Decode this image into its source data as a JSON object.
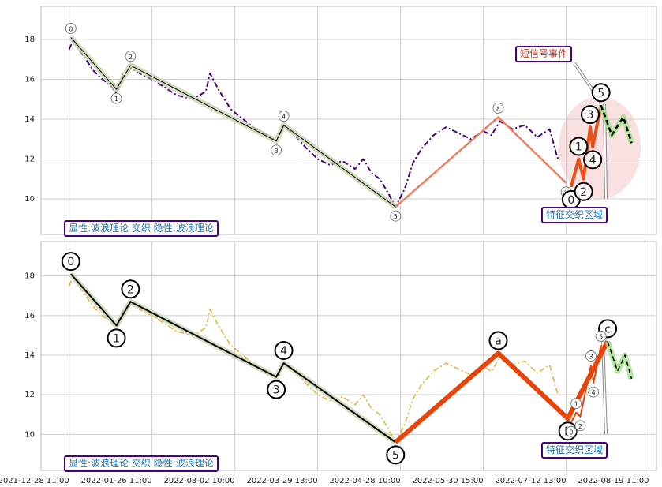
{
  "chart_data": [
    {
      "type": "line",
      "xlim": [
        -34,
        709
      ],
      "ylim": [
        8.22,
        19.66
      ],
      "yticks": [
        10,
        12,
        14,
        16,
        18
      ],
      "grid": true,
      "annotations": [
        "显性:波浪理论 交织 隐性:波浪理论",
        "特征交织区域",
        "短信号事件"
      ],
      "series": [
        {
          "color": "#4b0082",
          "linestyle": "dashdot",
          "width": 2,
          "x": [
            0,
            5,
            10,
            20,
            30,
            40,
            50,
            57,
            65,
            74,
            85,
            100,
            115,
            130,
            150,
            165,
            170,
            180,
            195,
            210,
            225,
            240,
            250,
            259,
            270,
            285,
            300,
            315,
            330,
            345,
            355,
            365,
            375,
            385,
            394,
            405,
            415,
            425,
            440,
            455,
            470,
            485,
            500,
            510,
            520,
            535,
            550,
            565,
            580,
            590
          ],
          "values": [
            17.5,
            18.0,
            17.6,
            17.0,
            16.4,
            16.0,
            15.7,
            15.3,
            16.2,
            16.6,
            16.3,
            16.0,
            15.6,
            15.2,
            15.0,
            15.4,
            16.3,
            15.5,
            14.5,
            14.0,
            13.5,
            13.2,
            12.9,
            13.6,
            13.3,
            12.6,
            12.0,
            11.7,
            11.9,
            11.5,
            12.0,
            11.3,
            11.0,
            10.3,
            9.6,
            10.5,
            11.8,
            12.5,
            13.2,
            13.6,
            13.3,
            13.0,
            13.4,
            13.2,
            13.9,
            13.5,
            13.7,
            13.1,
            13.5,
            12.0
          ]
        },
        {
          "color": "#000000",
          "width": 1,
          "band": "#c8d6b0",
          "labelsize": "small",
          "x": [
            2,
            57,
            74,
            250,
            259,
            394
          ],
          "values": [
            18.1,
            15.5,
            16.7,
            12.9,
            13.7,
            9.6
          ],
          "labels": [
            "0",
            "1",
            "2",
            "3",
            "4",
            "5"
          ]
        },
        {
          "color": "#f08060",
          "width": 2.5,
          "labelsize": "small",
          "x": [
            394,
            518,
            600
          ],
          "values": [
            9.6,
            14.1,
            10.8
          ],
          "labels": [
            null,
            "a",
            "b"
          ]
        },
        {
          "color": "#e8501a",
          "width": 4,
          "labelsize": "large",
          "x": [
            606,
            615,
            621,
            629,
            632,
            642
          ],
          "values": [
            10.6,
            12.0,
            11.0,
            13.6,
            12.6,
            14.7
          ],
          "labels": [
            "0",
            "1",
            "2",
            "3",
            "4",
            "5"
          ]
        },
        {
          "color": "#000000",
          "width": 2.5,
          "linestyle": "dashed",
          "band": "#9fe08a",
          "x": [
            642,
            655,
            669,
            679
          ],
          "values": [
            14.7,
            13.2,
            14.1,
            12.8
          ]
        }
      ]
    },
    {
      "type": "line",
      "xlim": [
        -34,
        709
      ],
      "ylim": [
        8.18,
        19.74
      ],
      "yticks": [
        10,
        12,
        14,
        16,
        18
      ],
      "grid": true,
      "xticks": [
        {
          "value": 0,
          "label": "2021-12-28 11:00"
        },
        {
          "value": 100,
          "label": "2022-01-26 11:00"
        },
        {
          "value": 200,
          "label": "2022-03-02 10:00"
        },
        {
          "value": 300,
          "label": "2022-03-29 13:00"
        },
        {
          "value": 400,
          "label": "2022-04-28 10:00"
        },
        {
          "value": 500,
          "label": "2022-05-30 15:00"
        },
        {
          "value": 600,
          "label": "2022-07-12 13:00"
        },
        {
          "value": 700,
          "label": "2022-08-19 11:00"
        }
      ],
      "annotations": [
        "显性:波浪理论 交织 隐性:波浪理论",
        "特征交织区域"
      ],
      "series": [
        {
          "color": "#e8b030",
          "linestyle": "dashdot",
          "width": 1.5,
          "x": [
            0,
            5,
            10,
            20,
            30,
            40,
            50,
            57,
            65,
            74,
            85,
            100,
            115,
            130,
            150,
            165,
            170,
            180,
            195,
            210,
            225,
            240,
            250,
            259,
            270,
            285,
            300,
            315,
            330,
            345,
            355,
            365,
            375,
            385,
            394,
            405,
            415,
            425,
            440,
            455,
            470,
            485,
            500,
            510,
            520,
            535,
            550,
            565,
            580,
            590
          ],
          "values": [
            17.5,
            18.0,
            17.6,
            17.0,
            16.4,
            16.0,
            15.7,
            15.3,
            16.2,
            16.6,
            16.3,
            16.0,
            15.6,
            15.2,
            15.0,
            15.4,
            16.3,
            15.5,
            14.5,
            14.0,
            13.5,
            13.2,
            12.9,
            13.6,
            13.3,
            12.6,
            12.0,
            11.7,
            11.9,
            11.5,
            12.0,
            11.3,
            11.0,
            10.3,
            9.6,
            10.5,
            11.8,
            12.5,
            13.2,
            13.6,
            13.3,
            13.0,
            13.4,
            13.2,
            13.9,
            13.5,
            13.7,
            13.1,
            13.5,
            12.0
          ]
        },
        {
          "color": "#000000",
          "width": 2,
          "band": "#c8d6b0",
          "labelsize": "large",
          "x": [
            2,
            57,
            74,
            250,
            259,
            394
          ],
          "values": [
            18.1,
            15.5,
            16.7,
            12.9,
            13.6,
            9.6
          ],
          "labels": [
            "0",
            "1",
            "2",
            "3",
            "4",
            "5"
          ]
        },
        {
          "color": "#e8440a",
          "width": 6,
          "labelsize": "large",
          "x": [
            394,
            518,
            602,
            650
          ],
          "values": [
            9.6,
            14.1,
            10.8,
            14.7
          ],
          "labels": [
            null,
            "a",
            "b",
            "c"
          ]
        },
        {
          "color": "#e8440a",
          "width": 2,
          "labelsize": "small",
          "x": [
            606,
            612,
            617,
            630,
            633,
            642
          ],
          "values": [
            10.6,
            11.1,
            10.9,
            13.5,
            12.6,
            14.5
          ],
          "labels": [
            "0",
            "1",
            "2",
            "3",
            "4",
            "5"
          ]
        },
        {
          "color": "#000000",
          "width": 1.5,
          "linestyle": "dashed",
          "band": "#9fe08a",
          "x": [
            650,
            662,
            671,
            679
          ],
          "values": [
            14.7,
            13.2,
            14.0,
            12.8
          ]
        }
      ]
    }
  ]
}
